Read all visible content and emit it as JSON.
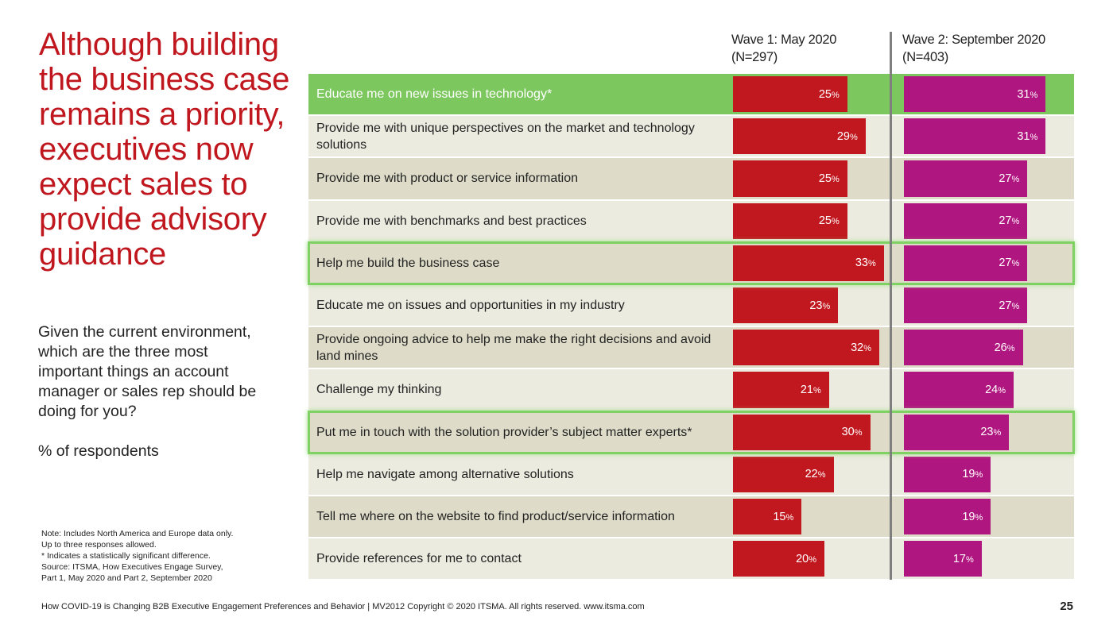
{
  "title": "Although building the business case remains a priority, executives now expect sales to provide advisory guidance",
  "subtitle": "Given the current environment, which are the three most important things an account manager or sales rep should be doing for you?",
  "units_label": "% of respondents",
  "notes": [
    "Note: Includes North America and Europe data only.",
    "Up to three responses allowed.",
    "* Indicates a statistically significant difference.",
    "Source: ITSMA, How Executives Engage Survey,",
    "Part 1, May 2020 and Part 2, September 2020"
  ],
  "footer": "How COVID-19 is Changing B2B Executive Engagement Preferences and Behavior | MV2012 Copyright © 2020 ITSMA. All rights reserved.  www.itsma.com",
  "page_number": "25",
  "colors": {
    "title": "#c0171f",
    "wave1": "#c1181f",
    "wave2": "#b0167f",
    "row_highlight": "#7dc75f",
    "row_light": "#ecebe0",
    "row_dark": "#dedcc9",
    "highlight_border": "#7ed162",
    "divider": "#7f7f7f"
  },
  "chart_data": {
    "type": "bar",
    "orientation": "horizontal",
    "unit": "%",
    "categories": [
      "Educate me on new issues in technology*",
      "Provide me with unique perspectives on the market and technology solutions",
      "Provide me with product or service information",
      "Provide me with benchmarks and best practices",
      "Help me build the business case",
      "Educate me on issues and opportunities in my industry",
      "Provide ongoing advice to help me make the right decisions and avoid land mines",
      "Challenge my thinking",
      "Put me in touch with the solution provider’s subject matter experts*",
      "Help me navigate among alternative solutions",
      "Tell me where on the website to find product/service information",
      "Provide references for me to contact"
    ],
    "series": [
      {
        "name": "Wave 1: May 2020",
        "n_label": "(N=297)",
        "values": [
          25,
          29,
          25,
          25,
          33,
          23,
          32,
          21,
          30,
          22,
          15,
          20
        ]
      },
      {
        "name": "Wave 2: September 2020",
        "n_label": "(N=403)",
        "values": [
          31,
          31,
          27,
          27,
          27,
          27,
          26,
          24,
          23,
          19,
          19,
          17
        ]
      }
    ],
    "highlighted_row": 0,
    "boxed_rows": [
      4,
      8
    ],
    "xlim": [
      0,
      38
    ],
    "grid": false
  }
}
